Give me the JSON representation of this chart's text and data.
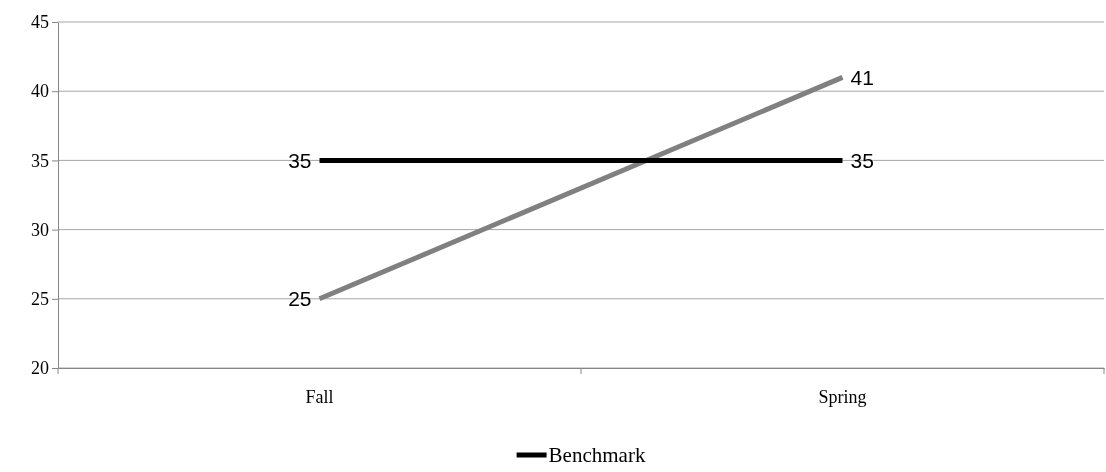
{
  "chart_data": {
    "type": "line",
    "categories": [
      "Fall",
      "Spring"
    ],
    "series": [
      {
        "color": "#808080",
        "values": [
          25,
          41
        ]
      },
      {
        "name": "Benchmark",
        "color": "#000000",
        "values": [
          35,
          35
        ]
      }
    ],
    "ylim": [
      20,
      45
    ],
    "yticks": [
      20,
      25,
      30,
      35,
      40,
      45
    ],
    "grid": "y",
    "legend": "bottom",
    "data_labels": true,
    "marker": "none",
    "line_style": "solid"
  }
}
